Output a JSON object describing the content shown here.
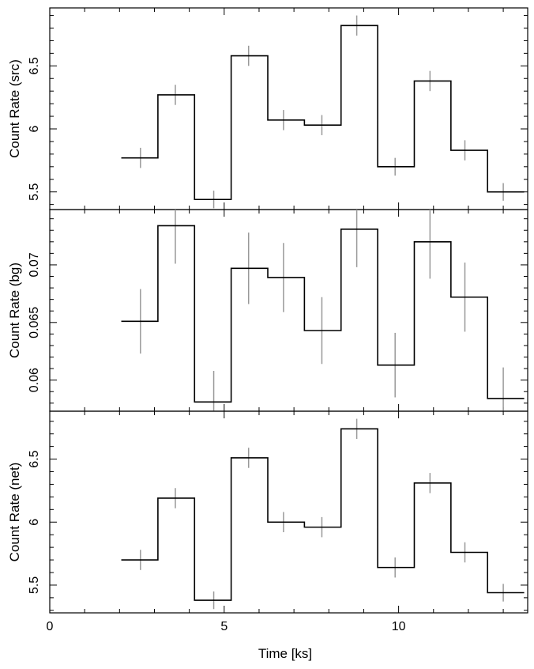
{
  "chart_data": {
    "type": "line",
    "xlabel": "Time [ks]",
    "xlim": [
      0,
      13.7
    ],
    "xticks": [
      "0",
      "5",
      "10"
    ],
    "x_bin_edges": [
      2.05,
      3.1,
      4.15,
      5.2,
      6.25,
      7.3,
      8.35,
      9.4,
      10.45,
      11.5,
      12.55,
      13.6
    ],
    "x_centers": [
      2.6,
      3.6,
      4.7,
      5.7,
      6.7,
      7.8,
      8.8,
      9.9,
      10.9,
      11.9,
      13.0
    ],
    "panels": [
      {
        "ylabel": "Count Rate (src)",
        "ylim": [
          5.36,
          6.96
        ],
        "yticks": [
          "5.5",
          "6",
          "6.5"
        ],
        "values": [
          5.77,
          6.27,
          5.44,
          6.58,
          6.07,
          6.03,
          6.82,
          5.7,
          6.38,
          5.83,
          5.5
        ],
        "errors": [
          0.08,
          0.08,
          0.07,
          0.08,
          0.08,
          0.08,
          0.08,
          0.07,
          0.08,
          0.08,
          0.07
        ]
      },
      {
        "ylabel": "Count Rate (bg)",
        "ylim": [
          0.0573,
          0.0748
        ],
        "yticks": [
          "0.06",
          "0.065",
          "0.07"
        ],
        "values": [
          0.0651,
          0.0734,
          0.0581,
          0.0697,
          0.0689,
          0.0643,
          0.0731,
          0.0613,
          0.072,
          0.0672,
          0.0584
        ],
        "errors": [
          0.0028,
          0.0033,
          0.0027,
          0.0031,
          0.003,
          0.0029,
          0.0033,
          0.0028,
          0.0032,
          0.003,
          0.0027
        ]
      },
      {
        "ylabel": "Count Rate (net)",
        "ylim": [
          5.28,
          6.88
        ],
        "yticks": [
          "5.5",
          "6",
          "6.5"
        ],
        "values": [
          5.7,
          6.19,
          5.38,
          6.51,
          6.0,
          5.96,
          6.74,
          5.64,
          6.31,
          5.76,
          5.44
        ],
        "errors": [
          0.08,
          0.08,
          0.07,
          0.08,
          0.08,
          0.08,
          0.08,
          0.08,
          0.08,
          0.08,
          0.07
        ]
      }
    ]
  }
}
